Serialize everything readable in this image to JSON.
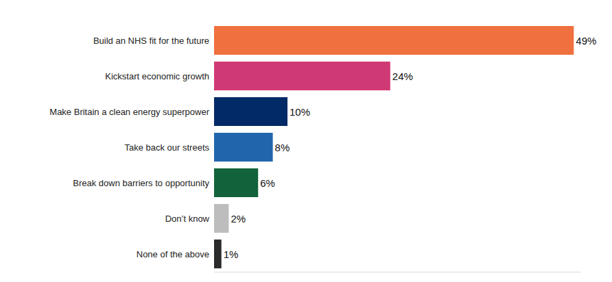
{
  "chart_data": {
    "type": "bar",
    "orientation": "horizontal",
    "categories": [
      "Build an NHS fit for the future",
      "Kickstart economic growth",
      "Make Britain a clean energy superpower",
      "Take back our streets",
      "Break down barriers to opportunity",
      "Don’t know",
      "None of the above"
    ],
    "values": [
      49,
      24,
      10,
      8,
      6,
      2,
      1
    ],
    "value_labels": [
      "49%",
      "24%",
      "10%",
      "8%",
      "6%",
      "2%",
      "1%"
    ],
    "colors": [
      "#f07040",
      "#d03a74",
      "#012a66",
      "#2166ad",
      "#12633b",
      "#bdbdbd",
      "#2b2b2b"
    ],
    "xlim": [
      0,
      50
    ],
    "grid": false,
    "data_labels": true,
    "tick_labels": "y"
  }
}
